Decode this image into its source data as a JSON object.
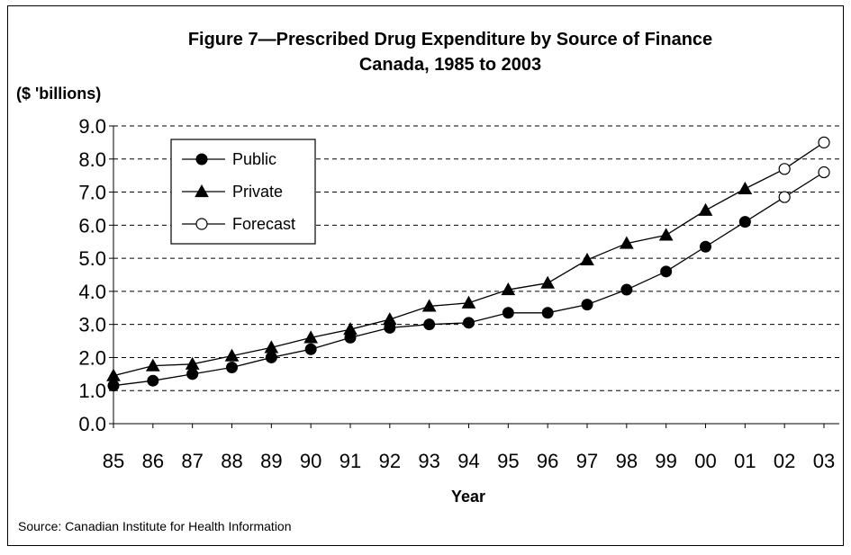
{
  "chart_data": {
    "type": "line",
    "title": "Figure 7—Prescribed Drug Expenditure by Source of Finance",
    "subtitle": "Canada, 1985 to 2003",
    "ylabel": "($ 'billions)",
    "xlabel": "Year",
    "source": "Source: Canadian Institute for Health Information",
    "ylim": [
      0,
      9
    ],
    "yticks": [
      "0.0",
      "1.0",
      "2.0",
      "3.0",
      "4.0",
      "5.0",
      "6.0",
      "7.0",
      "8.0",
      "9.0"
    ],
    "categories": [
      "85",
      "86",
      "87",
      "88",
      "89",
      "90",
      "91",
      "92",
      "93",
      "94",
      "95",
      "96",
      "97",
      "98",
      "99",
      "00",
      "01",
      "02",
      "03"
    ],
    "grid": true,
    "legend_position": "top-left",
    "series": [
      {
        "name": "Public",
        "marker": "circle-filled",
        "values": [
          1.15,
          1.3,
          1.5,
          1.7,
          2.0,
          2.25,
          2.6,
          2.9,
          3.0,
          3.05,
          3.35,
          3.35,
          3.6,
          4.05,
          4.6,
          5.35,
          6.1,
          6.85,
          7.6
        ],
        "forecast_from_index": 17
      },
      {
        "name": "Private",
        "marker": "triangle-filled",
        "values": [
          1.45,
          1.75,
          1.8,
          2.05,
          2.3,
          2.6,
          2.85,
          3.15,
          3.55,
          3.65,
          4.05,
          4.25,
          4.95,
          5.45,
          5.7,
          6.45,
          7.1,
          7.7,
          8.5
        ],
        "forecast_from_index": 17
      }
    ],
    "legend": [
      {
        "label": "Public",
        "marker": "circle-filled"
      },
      {
        "label": "Private",
        "marker": "triangle-filled"
      },
      {
        "label": "Forecast",
        "marker": "circle-open"
      }
    ],
    "colors": {
      "line": "#000000",
      "grid": "#000000",
      "background": "#ffffff"
    }
  }
}
